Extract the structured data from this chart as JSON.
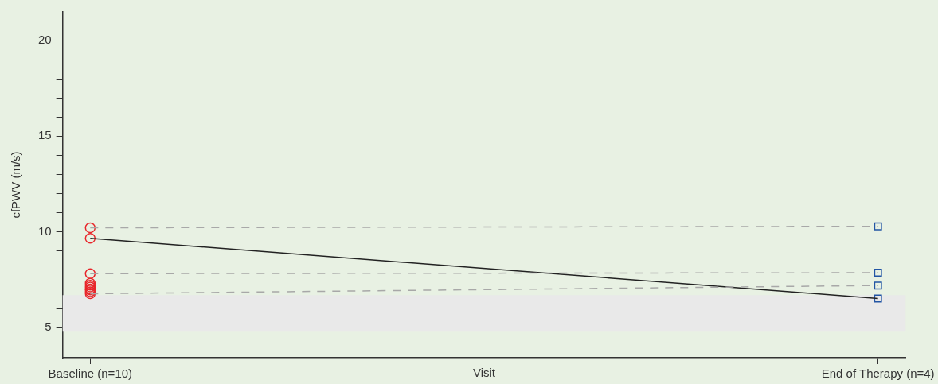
{
  "chart_data": {
    "type": "scatter",
    "xlabel": "Visit",
    "ylabel": "cfPWV (m/s)",
    "categories": [
      "Baseline (n=10)",
      "End of Therapy (n=4)"
    ],
    "series": [
      {
        "type": "line",
        "color": "#a8a8a8",
        "line_style": "dashed",
        "marker": "none",
        "values": [
          10.2,
          10.28
        ]
      },
      {
        "type": "line",
        "color": "#a8a8a8",
        "line_style": "dashed",
        "marker": "none",
        "values": [
          7.8,
          7.85
        ]
      },
      {
        "type": "line",
        "color": "#a8a8a8",
        "line_style": "dashed",
        "marker": "none",
        "values": [
          6.75,
          7.18
        ]
      },
      {
        "type": "line",
        "color": "#222222",
        "line_style": "solid",
        "marker": "none",
        "values": [
          9.65,
          6.5
        ]
      },
      {
        "type": "scatter",
        "color": "#e8262b",
        "marker": "circle",
        "x": [
          "Baseline (n=10)",
          "Baseline (n=10)",
          "Baseline (n=10)",
          "Baseline (n=10)",
          "Baseline (n=10)",
          "Baseline (n=10)",
          "Baseline (n=10)",
          "Baseline (n=10)",
          "Baseline (n=10)",
          "Baseline (n=10)"
        ],
        "values": [
          10.2,
          9.65,
          7.8,
          7.3,
          7.2,
          7.1,
          7.0,
          6.95,
          6.85,
          6.75
        ]
      },
      {
        "type": "scatter",
        "color": "#2255a4",
        "marker": "square",
        "x": [
          "End of Therapy (n=4)",
          "End of Therapy (n=4)",
          "End of Therapy (n=4)",
          "End of Therapy (n=4)"
        ],
        "values": [
          10.28,
          7.85,
          7.18,
          6.5
        ]
      }
    ],
    "bands": [
      {
        "axis": "y",
        "from": 4.8,
        "to": 6.68,
        "color": "#e9e9e9"
      }
    ],
    "ylim": [
      3.4,
      21.5
    ],
    "yticks": [
      5,
      10,
      15,
      20
    ],
    "grid": false,
    "legend": false
  }
}
